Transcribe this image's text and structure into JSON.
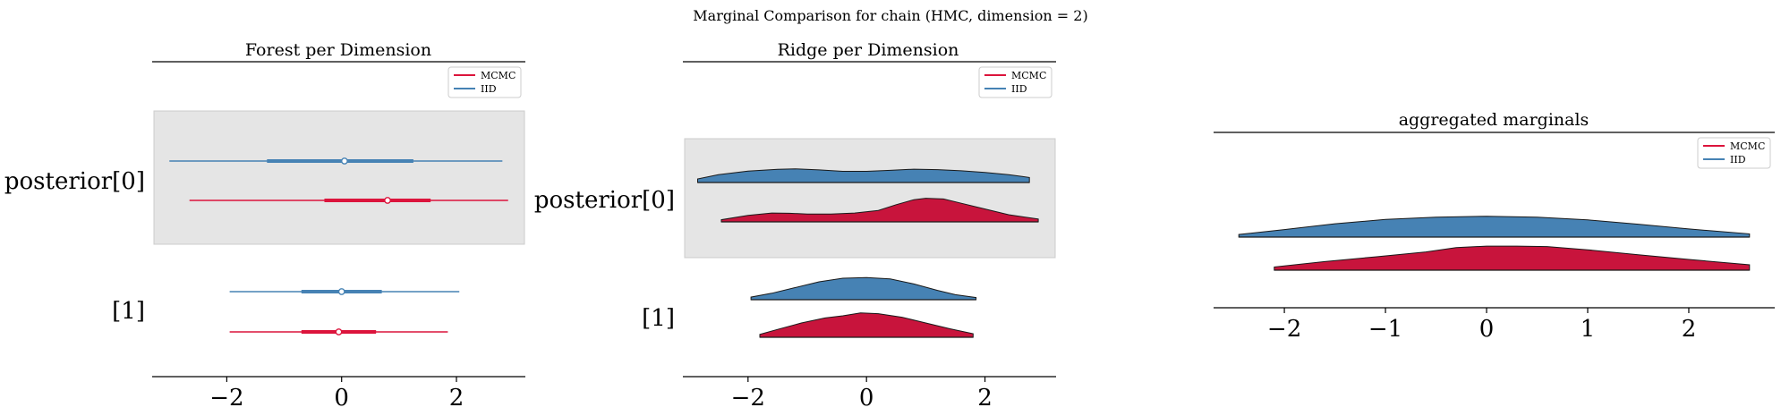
{
  "figure": {
    "suptitle": "Marginal Comparison for chain (HMC, dimension = 2)"
  },
  "colors": {
    "mcmc": "#DC143C",
    "mcmc_fill": "#C8143C",
    "iid": "#4682B4",
    "band": "#E5E5E5",
    "band_edge": "#CCCCCC"
  },
  "chart_data": [
    {
      "type": "forest",
      "title": "Forest per Dimension",
      "xlim": [
        -3.3,
        3.2
      ],
      "xticks": [
        -2,
        0,
        2
      ],
      "xtick_labels": [
        "−2",
        "0",
        "2"
      ],
      "ylabels": [
        "posterior[0]",
        "[1]"
      ],
      "legend": {
        "entries": [
          "MCMC",
          "IID"
        ],
        "placement": "top-right"
      },
      "rows": [
        {
          "label": "posterior[0]",
          "series": [
            {
              "name": "IID",
              "hdi94": [
                -3.0,
                2.8
              ],
              "hdi50": [
                -1.3,
                1.25
              ],
              "median": 0.05
            },
            {
              "name": "MCMC",
              "hdi94": [
                -2.65,
                2.9
              ],
              "hdi50": [
                -0.3,
                1.55
              ],
              "median": 0.8
            }
          ]
        },
        {
          "label": "[1]",
          "series": [
            {
              "name": "IID",
              "hdi94": [
                -1.95,
                2.05
              ],
              "hdi50": [
                -0.7,
                0.7
              ],
              "median": 0.0
            },
            {
              "name": "MCMC",
              "hdi94": [
                -1.95,
                1.85
              ],
              "hdi50": [
                -0.7,
                0.6
              ],
              "median": -0.05
            }
          ]
        }
      ]
    },
    {
      "type": "ridge",
      "title": "Ridge per Dimension",
      "xlim": [
        -3.1,
        3.2
      ],
      "xticks": [
        -2,
        0,
        2
      ],
      "xtick_labels": [
        "−2",
        "0",
        "2"
      ],
      "ylabels": [
        "posterior[0]",
        "[1]"
      ],
      "legend": {
        "entries": [
          "MCMC",
          "IID"
        ],
        "placement": "top-right"
      },
      "rows": [
        {
          "label": "posterior[0]",
          "series": [
            {
              "name": "IID",
              "x": [
                -2.85,
                -2.5,
                -2.0,
                -1.5,
                -1.2,
                -0.8,
                -0.4,
                0.0,
                0.4,
                0.8,
                1.2,
                1.6,
                2.0,
                2.4,
                2.75
              ],
              "density": [
                0.25,
                0.55,
                0.8,
                0.92,
                0.95,
                0.88,
                0.78,
                0.78,
                0.85,
                0.93,
                0.9,
                0.82,
                0.7,
                0.55,
                0.35
              ]
            },
            {
              "name": "MCMC",
              "x": [
                -2.45,
                -2.0,
                -1.6,
                -1.3,
                -1.0,
                -0.6,
                -0.2,
                0.2,
                0.5,
                0.8,
                1.0,
                1.3,
                1.6,
                2.0,
                2.4,
                2.9
              ],
              "density": [
                0.15,
                0.45,
                0.62,
                0.6,
                0.55,
                0.55,
                0.62,
                0.8,
                1.2,
                1.55,
                1.65,
                1.6,
                1.3,
                0.9,
                0.5,
                0.2
              ]
            }
          ]
        },
        {
          "label": "[1]",
          "series": [
            {
              "name": "IID",
              "x": [
                -1.95,
                -1.6,
                -1.2,
                -0.8,
                -0.4,
                0.0,
                0.4,
                0.8,
                1.2,
                1.5,
                1.85
              ],
              "density": [
                0.18,
                0.45,
                0.85,
                1.25,
                1.5,
                1.55,
                1.45,
                1.1,
                0.65,
                0.35,
                0.15
              ]
            },
            {
              "name": "MCMC",
              "x": [
                -1.8,
                -1.5,
                -1.1,
                -0.7,
                -0.4,
                -0.1,
                0.2,
                0.6,
                1.0,
                1.4,
                1.8
              ],
              "density": [
                0.2,
                0.55,
                1.0,
                1.35,
                1.5,
                1.7,
                1.65,
                1.4,
                1.0,
                0.6,
                0.25
              ]
            }
          ]
        }
      ]
    },
    {
      "type": "ridge",
      "title": "aggregated marginals",
      "xlim": [
        -2.7,
        2.85
      ],
      "xticks": [
        -2,
        -1,
        0,
        1,
        2
      ],
      "xtick_labels": [
        "−2",
        "−1",
        "0",
        "1",
        "2"
      ],
      "legend": {
        "entries": [
          "MCMC",
          "IID"
        ],
        "placement": "top-right"
      },
      "rows": [
        {
          "label": "",
          "series": [
            {
              "name": "IID",
              "x": [
                -2.45,
                -2.0,
                -1.5,
                -1.0,
                -0.5,
                0.0,
                0.5,
                1.0,
                1.5,
                2.0,
                2.6
              ],
              "density": [
                0.12,
                0.35,
                0.62,
                0.82,
                0.93,
                0.97,
                0.93,
                0.8,
                0.6,
                0.38,
                0.15
              ]
            },
            {
              "name": "MCMC",
              "x": [
                -2.1,
                -1.6,
                -1.1,
                -0.6,
                -0.3,
                0.0,
                0.3,
                0.6,
                1.0,
                1.5,
                2.0,
                2.6
              ],
              "density": [
                0.15,
                0.4,
                0.62,
                0.85,
                1.05,
                1.12,
                1.12,
                1.1,
                0.95,
                0.72,
                0.5,
                0.25
              ]
            }
          ]
        }
      ]
    }
  ]
}
